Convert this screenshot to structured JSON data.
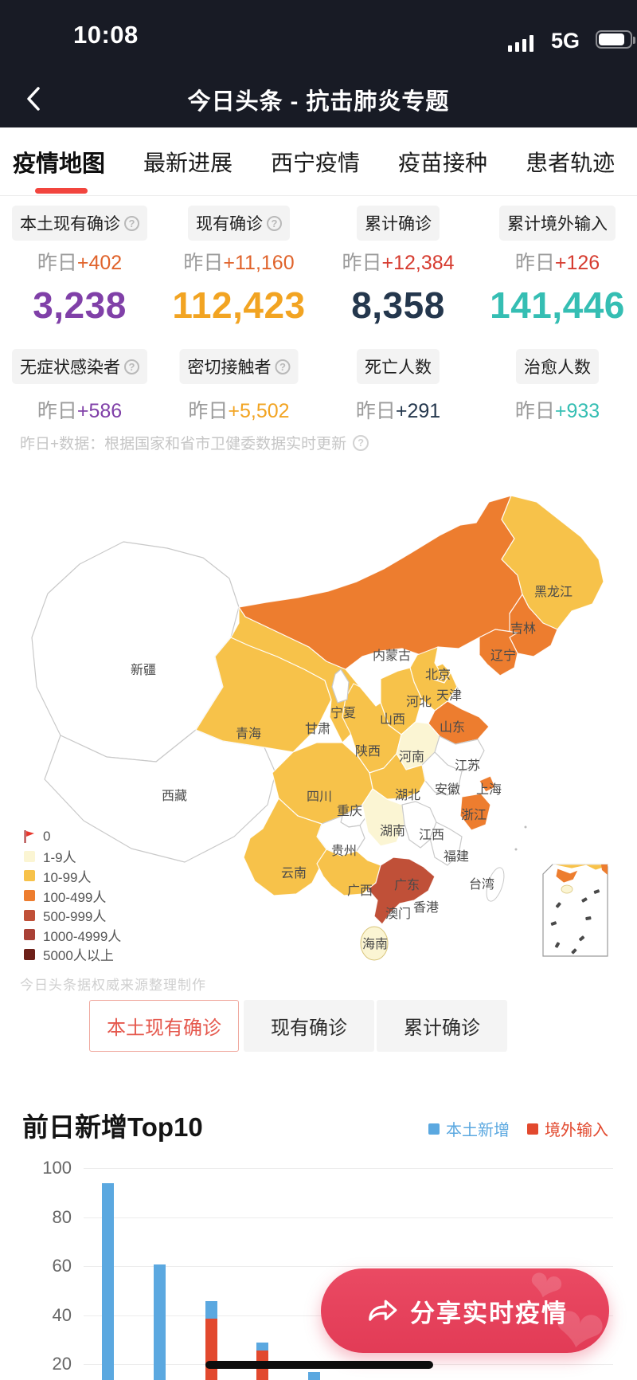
{
  "status_bar": {
    "time": "10:08",
    "network": "5G"
  },
  "nav": {
    "title": "今日头条 - 抗击肺炎专题"
  },
  "tabs": [
    {
      "label": "疫情地图",
      "active": true
    },
    {
      "label": "最新进展",
      "active": false
    },
    {
      "label": "西宁疫情",
      "active": false
    },
    {
      "label": "疫苗接种",
      "active": false
    },
    {
      "label": "患者轨迹",
      "active": false
    }
  ],
  "stats": {
    "yesterday_prefix": "昨日",
    "cards": [
      {
        "top_label": "本土现有确诊",
        "top_help": true,
        "top_delta": "+402",
        "top_delta_color": "#e0632b",
        "value": "3,238",
        "value_color": "#8040a8",
        "bottom_label": "无症状感染者",
        "bottom_help": true,
        "bottom_delta": "+586"
      },
      {
        "top_label": "现有确诊",
        "top_help": true,
        "top_delta": "+11,160",
        "top_delta_color": "#e0632b",
        "value": "112,423",
        "value_color": "#f2a422",
        "bottom_label": "密切接触者",
        "bottom_help": true,
        "bottom_delta": "+5,502"
      },
      {
        "top_label": "累计确诊",
        "top_help": false,
        "top_delta": "+12,384",
        "top_delta_color": "#d63c30",
        "value": "8,358",
        "value_color": "#24374d",
        "bottom_label": "死亡人数",
        "bottom_help": false,
        "bottom_delta": "+291"
      },
      {
        "top_label": "累计境外输入",
        "top_help": false,
        "top_delta": "+126",
        "top_delta_color": "#d63c30",
        "value": "141,446",
        "value_color": "#35beb3",
        "bottom_label": "治愈人数",
        "bottom_help": false,
        "bottom_delta": "+933"
      }
    ],
    "note": "昨日+数据：根据国家和省市卫健委数据实时更新"
  },
  "map": {
    "level_colors": {
      "0": "#ffffff",
      "1-9人": "#fbf5d3",
      "10-99人": "#f7c24a",
      "100-499人": "#ed7d2f",
      "500-999人": "#c05038",
      "1000-4999人": "#a94136",
      "5000人以上": "#6d2019"
    },
    "flag_color": "#e8372d",
    "legend": [
      {
        "label": "0",
        "swatch": "flag"
      },
      {
        "label": "1-9人",
        "swatch": "1-9人"
      },
      {
        "label": "10-99人",
        "swatch": "10-99人"
      },
      {
        "label": "100-499人",
        "swatch": "100-499人"
      },
      {
        "label": "500-999人",
        "swatch": "500-999人"
      },
      {
        "label": "1000-4999人",
        "swatch": "1000-4999人"
      },
      {
        "label": "5000人以上",
        "swatch": "5000人以上"
      }
    ],
    "watermark": "今日头条据权威来源整理制作",
    "provinces": [
      {
        "name": "新疆",
        "level": "0"
      },
      {
        "name": "西藏",
        "level": "0"
      },
      {
        "name": "青海",
        "level": "10-99人"
      },
      {
        "name": "甘肃",
        "level": "10-99人"
      },
      {
        "name": "内蒙古",
        "level": "100-499人"
      },
      {
        "name": "黑龙江",
        "level": "10-99人"
      },
      {
        "name": "吉林",
        "level": "100-499人"
      },
      {
        "name": "辽宁",
        "level": "100-499人"
      },
      {
        "name": "北京",
        "level": "10-99人"
      },
      {
        "name": "天津",
        "level": "0"
      },
      {
        "name": "河北",
        "level": "10-99人"
      },
      {
        "name": "山西",
        "level": "10-99人"
      },
      {
        "name": "山东",
        "level": "100-499人"
      },
      {
        "name": "陕西",
        "level": "10-99人"
      },
      {
        "name": "宁夏",
        "level": "0"
      },
      {
        "name": "河南",
        "level": "1-9人"
      },
      {
        "name": "江苏",
        "level": "0"
      },
      {
        "name": "安徽",
        "level": "0"
      },
      {
        "name": "上海",
        "level": "100-499人"
      },
      {
        "name": "湖北",
        "level": "10-99人"
      },
      {
        "name": "浙江",
        "level": "100-499人"
      },
      {
        "name": "四川",
        "level": "10-99人"
      },
      {
        "name": "重庆",
        "level": "0"
      },
      {
        "name": "湖南",
        "level": "1-9人"
      },
      {
        "name": "江西",
        "level": "0"
      },
      {
        "name": "贵州",
        "level": "0"
      },
      {
        "name": "福建",
        "level": "0"
      },
      {
        "name": "云南",
        "level": "10-99人"
      },
      {
        "name": "广西",
        "level": "10-99人"
      },
      {
        "name": "广东",
        "level": "500-999人"
      },
      {
        "name": "海南",
        "level": "1-9人"
      },
      {
        "name": "台湾",
        "level": "0"
      },
      {
        "name": "香港",
        "level": null
      },
      {
        "name": "澳门",
        "level": null
      }
    ]
  },
  "filter_buttons": [
    {
      "label": "本土现有确诊",
      "active": true
    },
    {
      "label": "现有确诊",
      "active": false
    },
    {
      "label": "累计确诊",
      "active": false
    }
  ],
  "chart_data": {
    "type": "bar",
    "stacked": true,
    "title": "前日新增Top10",
    "series": [
      {
        "name": "本土新增",
        "color": "#5ba8e0",
        "values": [
          94,
          61,
          7,
          3,
          17
        ]
      },
      {
        "name": "境外输入",
        "color": "#e2492e",
        "values": [
          0,
          0,
          39,
          26,
          0
        ]
      }
    ],
    "y_ticks": [
      100,
      80,
      60,
      40,
      20
    ],
    "legend_position": "top-right",
    "grid": true
  },
  "share_button": {
    "label": "分享实时疫情"
  }
}
